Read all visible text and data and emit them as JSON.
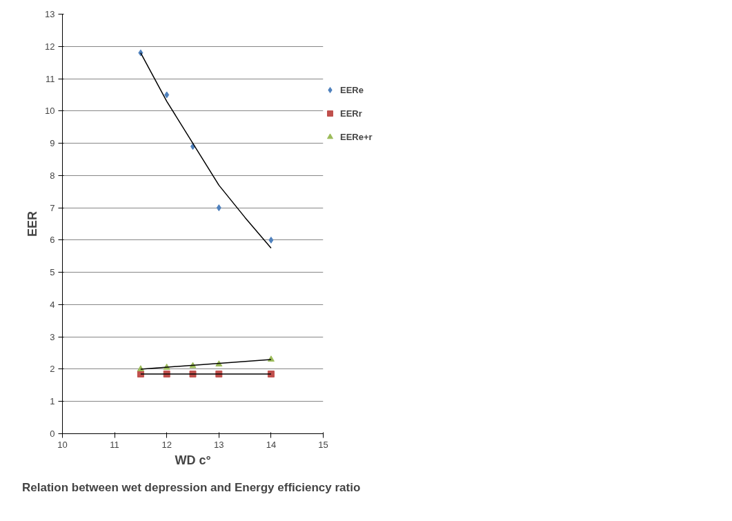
{
  "chart_data": {
    "type": "scatter",
    "title": "Relation  between wet depression and Energy efficiency ratio",
    "xlabel": "WD c°",
    "ylabel": "EER",
    "x": [
      11.5,
      12,
      12.5,
      13,
      14
    ],
    "series": [
      {
        "name": "EERe",
        "color": "#4f81bd",
        "marker": "diamond",
        "values": [
          11.8,
          10.5,
          8.9,
          7.0,
          6.0
        ]
      },
      {
        "name": "EERr",
        "color": "#c0504d",
        "marker": "square",
        "values": [
          1.85,
          1.85,
          1.85,
          1.85,
          1.85
        ]
      },
      {
        "name": "EERe+r",
        "color": "#9bbb59",
        "marker": "triangle",
        "values": [
          2.0,
          2.05,
          2.1,
          2.15,
          2.3
        ]
      },
      {
        "type": "line",
        "color": "#000000",
        "x": [
          11.5,
          12,
          12.5,
          13,
          13.5,
          14
        ],
        "values": [
          11.8,
          10.3,
          9.0,
          7.7,
          6.7,
          5.75
        ]
      },
      {
        "type": "line",
        "color": "#000000",
        "x": [
          11.5,
          14
        ],
        "values": [
          1.85,
          1.85
        ]
      },
      {
        "type": "line",
        "color": "#000000",
        "x": [
          11.5,
          14
        ],
        "values": [
          2.0,
          2.3
        ]
      }
    ],
    "xlim": [
      10,
      15
    ],
    "xticks": [
      10,
      11,
      12,
      13,
      14,
      15
    ],
    "ylim": [
      0,
      13
    ],
    "yticks": [
      0,
      1,
      2,
      3,
      4,
      5,
      6,
      7,
      8,
      9,
      10,
      11,
      12,
      13
    ],
    "grid": "y",
    "legend": "right"
  }
}
